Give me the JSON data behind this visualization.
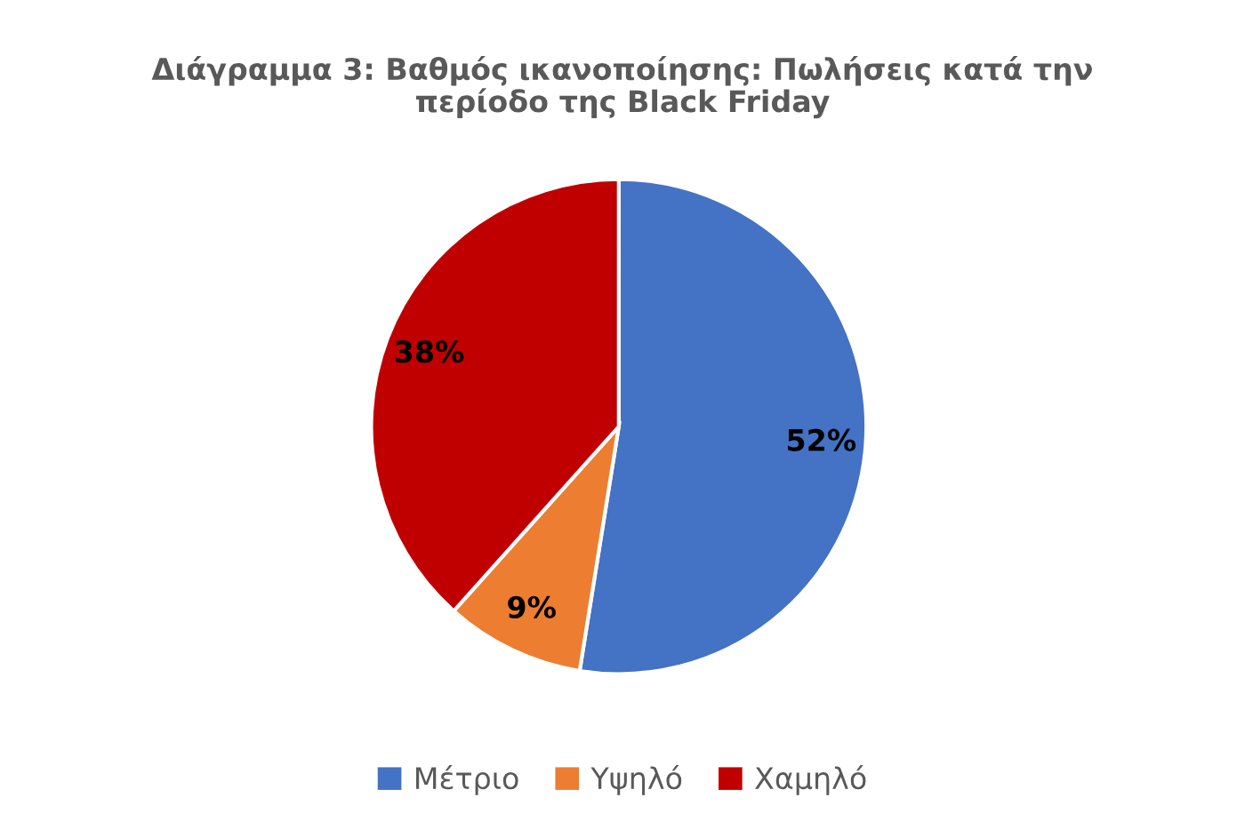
{
  "chart_data": {
    "type": "pie",
    "title": "Διάγραμμα 3: Βαθμός ικανοποίησης: Πωλήσεις κατά την\nπερίοδο της Black Friday",
    "categories": [
      "Μέτριο",
      "Υψηλό",
      "Χαμηλό"
    ],
    "values": [
      52,
      9,
      38
    ],
    "colors": [
      "#4472c4",
      "#ed7d31",
      "#c00000"
    ],
    "value_labels": [
      "52%",
      "9%",
      "38%"
    ],
    "legend": "bottom"
  }
}
